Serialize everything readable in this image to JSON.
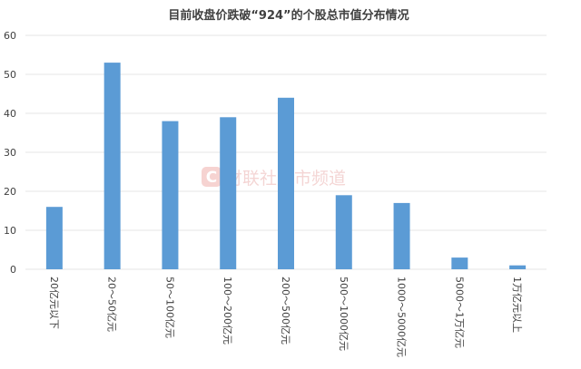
{
  "chart_data": {
    "type": "bar",
    "title": "目前收盘价跌破“924”的个股总市值分布情况",
    "categories": [
      "20亿元以下",
      "20～50亿元",
      "50～100亿元",
      "100～200亿元",
      "200～500亿元",
      "500～1000亿元",
      "1000～5000亿元",
      "5000～1万亿元",
      "1万亿元以上"
    ],
    "values": [
      16,
      53,
      38,
      39,
      44,
      19,
      17,
      3,
      1
    ],
    "xlabel": "",
    "ylabel": "",
    "ylim": [
      0,
      60
    ],
    "yticks": [
      0,
      10,
      20,
      30,
      40,
      50,
      60
    ],
    "grid": true,
    "legend": "none",
    "bar_color": "#5b9bd5",
    "grid_color": "#e6e6e6",
    "text_color": "#404040"
  },
  "watermark": "财联社股市频道"
}
